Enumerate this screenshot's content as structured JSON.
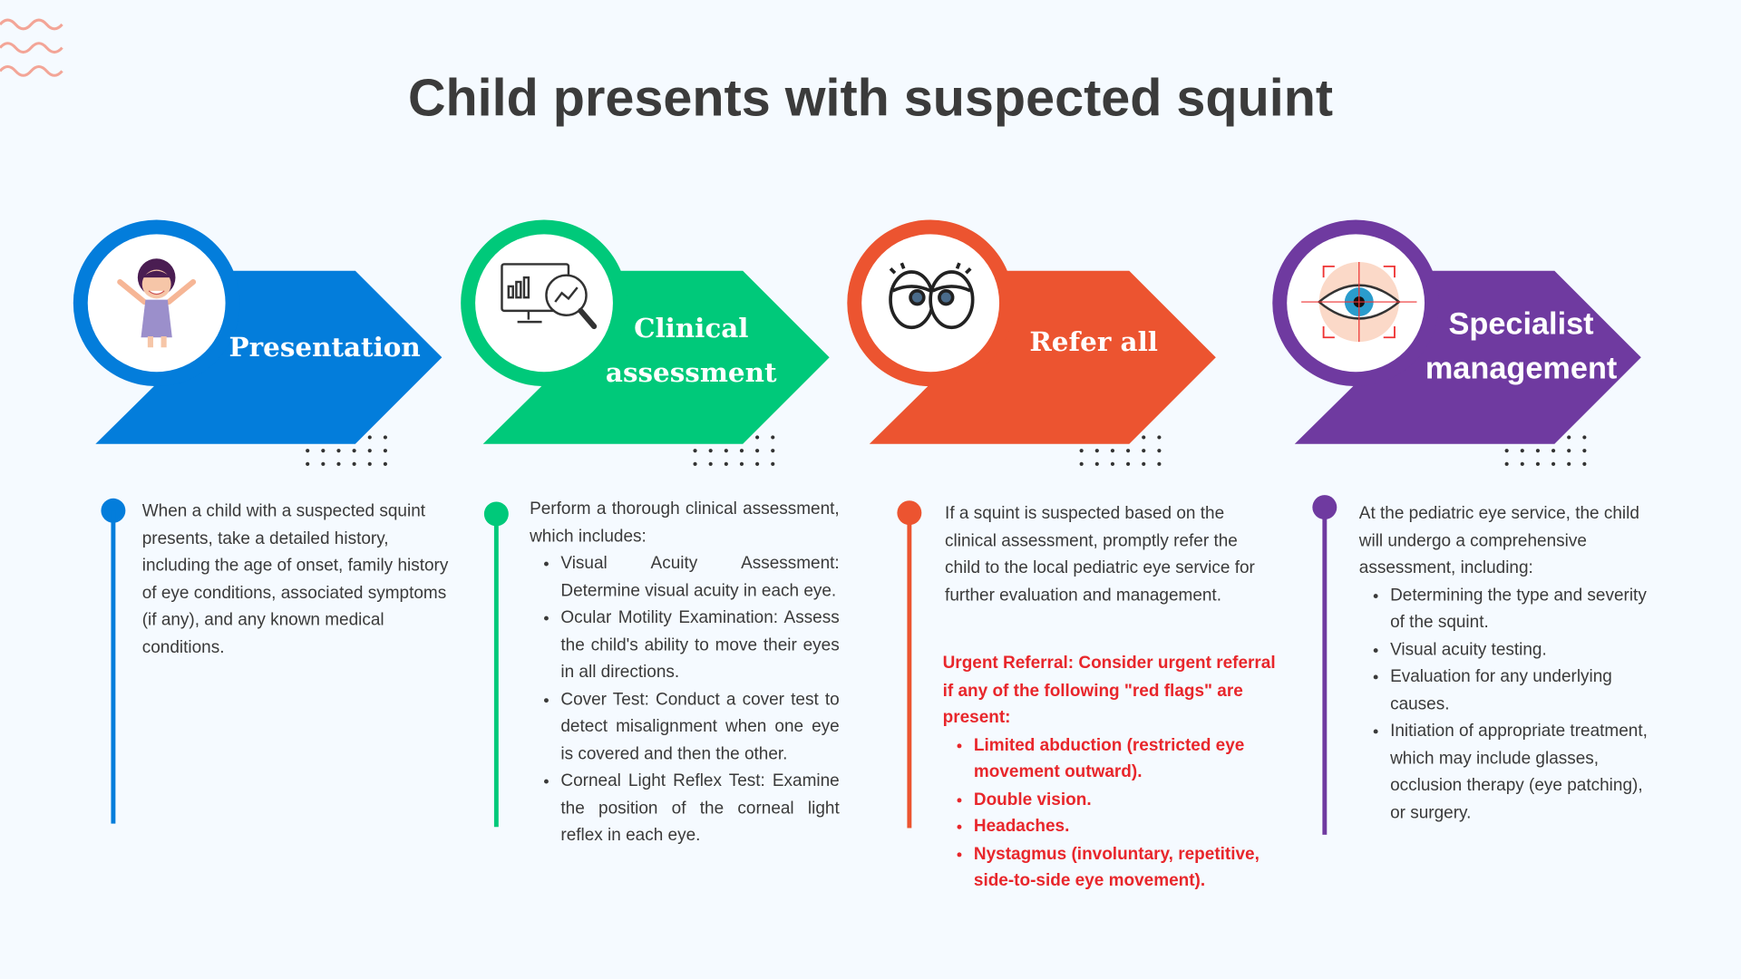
{
  "title": "Child presents with suspected squint",
  "colors": {
    "presentation": "#037ddb",
    "clinical": "#00c97a",
    "refer": "#ec5430",
    "specialist": "#6f3aa0",
    "urgent_text": "#e8262b",
    "wave": "#f3a597"
  },
  "steps": [
    {
      "heading": "Presentation",
      "icon": "child-icon",
      "text": "When a child with a suspected squint presents, take a detailed history, including the age of onset, family history of eye conditions, associated symptoms (if any), and any known medical conditions."
    },
    {
      "heading_line1": "Clinical",
      "heading_line2": "assessment",
      "icon": "analytics-magnifier-icon",
      "intro": "Perform a thorough clinical assessment, which includes:",
      "bullets": [
        "Visual Acuity Assessment: Determine visual acuity in each eye.",
        "Ocular Motility Examination: Assess the child's ability to move their eyes in all directions.",
        "Cover Test: Conduct a cover test to detect misalignment when one eye is covered and then the other.",
        "Corneal Light Reflex Test: Examine the position of the corneal light reflex in each eye."
      ]
    },
    {
      "heading": "Refer all",
      "icon": "cartoon-eyes-icon",
      "text": "If a squint is suspected based on the clinical assessment, promptly refer the child to the local pediatric eye service for further evaluation and management.",
      "urgent_intro": "Urgent Referral: Consider urgent referral if any of the following \"red flags\" are present:",
      "urgent_bullets": [
        "Limited abduction (restricted eye movement outward).",
        "Double vision.",
        "Headaches.",
        "Nystagmus (involuntary, repetitive, side-to-side eye movement)."
      ]
    },
    {
      "heading_line1": "Specialist",
      "heading_line2": "management",
      "icon": "eye-target-icon",
      "intro": "At the pediatric eye service, the child will undergo a comprehensive assessment, including:",
      "bullets": [
        "Determining the type and severity of the squint.",
        "Visual acuity testing.",
        "Evaluation for any underlying causes.",
        "Initiation of appropriate treatment, which may include glasses, occlusion therapy (eye patching), or surgery."
      ]
    }
  ]
}
